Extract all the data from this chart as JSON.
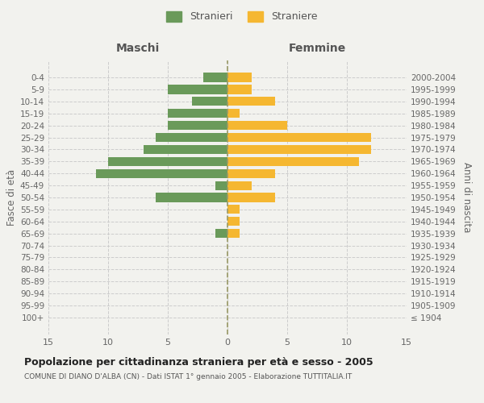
{
  "age_groups": [
    "100+",
    "95-99",
    "90-94",
    "85-89",
    "80-84",
    "75-79",
    "70-74",
    "65-69",
    "60-64",
    "55-59",
    "50-54",
    "45-49",
    "40-44",
    "35-39",
    "30-34",
    "25-29",
    "20-24",
    "15-19",
    "10-14",
    "5-9",
    "0-4"
  ],
  "birth_years": [
    "≤ 1904",
    "1905-1909",
    "1910-1914",
    "1915-1919",
    "1920-1924",
    "1925-1929",
    "1930-1934",
    "1935-1939",
    "1940-1944",
    "1945-1949",
    "1950-1954",
    "1955-1959",
    "1960-1964",
    "1965-1969",
    "1970-1974",
    "1975-1979",
    "1980-1984",
    "1985-1989",
    "1990-1994",
    "1995-1999",
    "2000-2004"
  ],
  "males": [
    0,
    0,
    0,
    0,
    0,
    0,
    0,
    1,
    0,
    0,
    6,
    1,
    11,
    10,
    7,
    6,
    5,
    5,
    3,
    5,
    2
  ],
  "females": [
    0,
    0,
    0,
    0,
    0,
    0,
    0,
    1,
    1,
    1,
    4,
    2,
    4,
    11,
    12,
    12,
    5,
    1,
    4,
    2,
    2
  ],
  "male_color": "#6a9a5a",
  "female_color": "#f5b731",
  "background_color": "#f2f2ee",
  "grid_color": "#cccccc",
  "title": "Popolazione per cittadinanza straniera per età e sesso - 2005",
  "subtitle": "COMUNE DI DIANO D'ALBA (CN) - Dati ISTAT 1° gennaio 2005 - Elaborazione TUTTITALIA.IT",
  "xlabel_left": "Maschi",
  "xlabel_right": "Femmine",
  "ylabel_left": "Fasce di età",
  "ylabel_right": "Anni di nascita",
  "legend_stranieri": "Stranieri",
  "legend_straniere": "Straniere",
  "xlim": 15,
  "bar_height": 0.75,
  "dashed_line_color": "#999966"
}
